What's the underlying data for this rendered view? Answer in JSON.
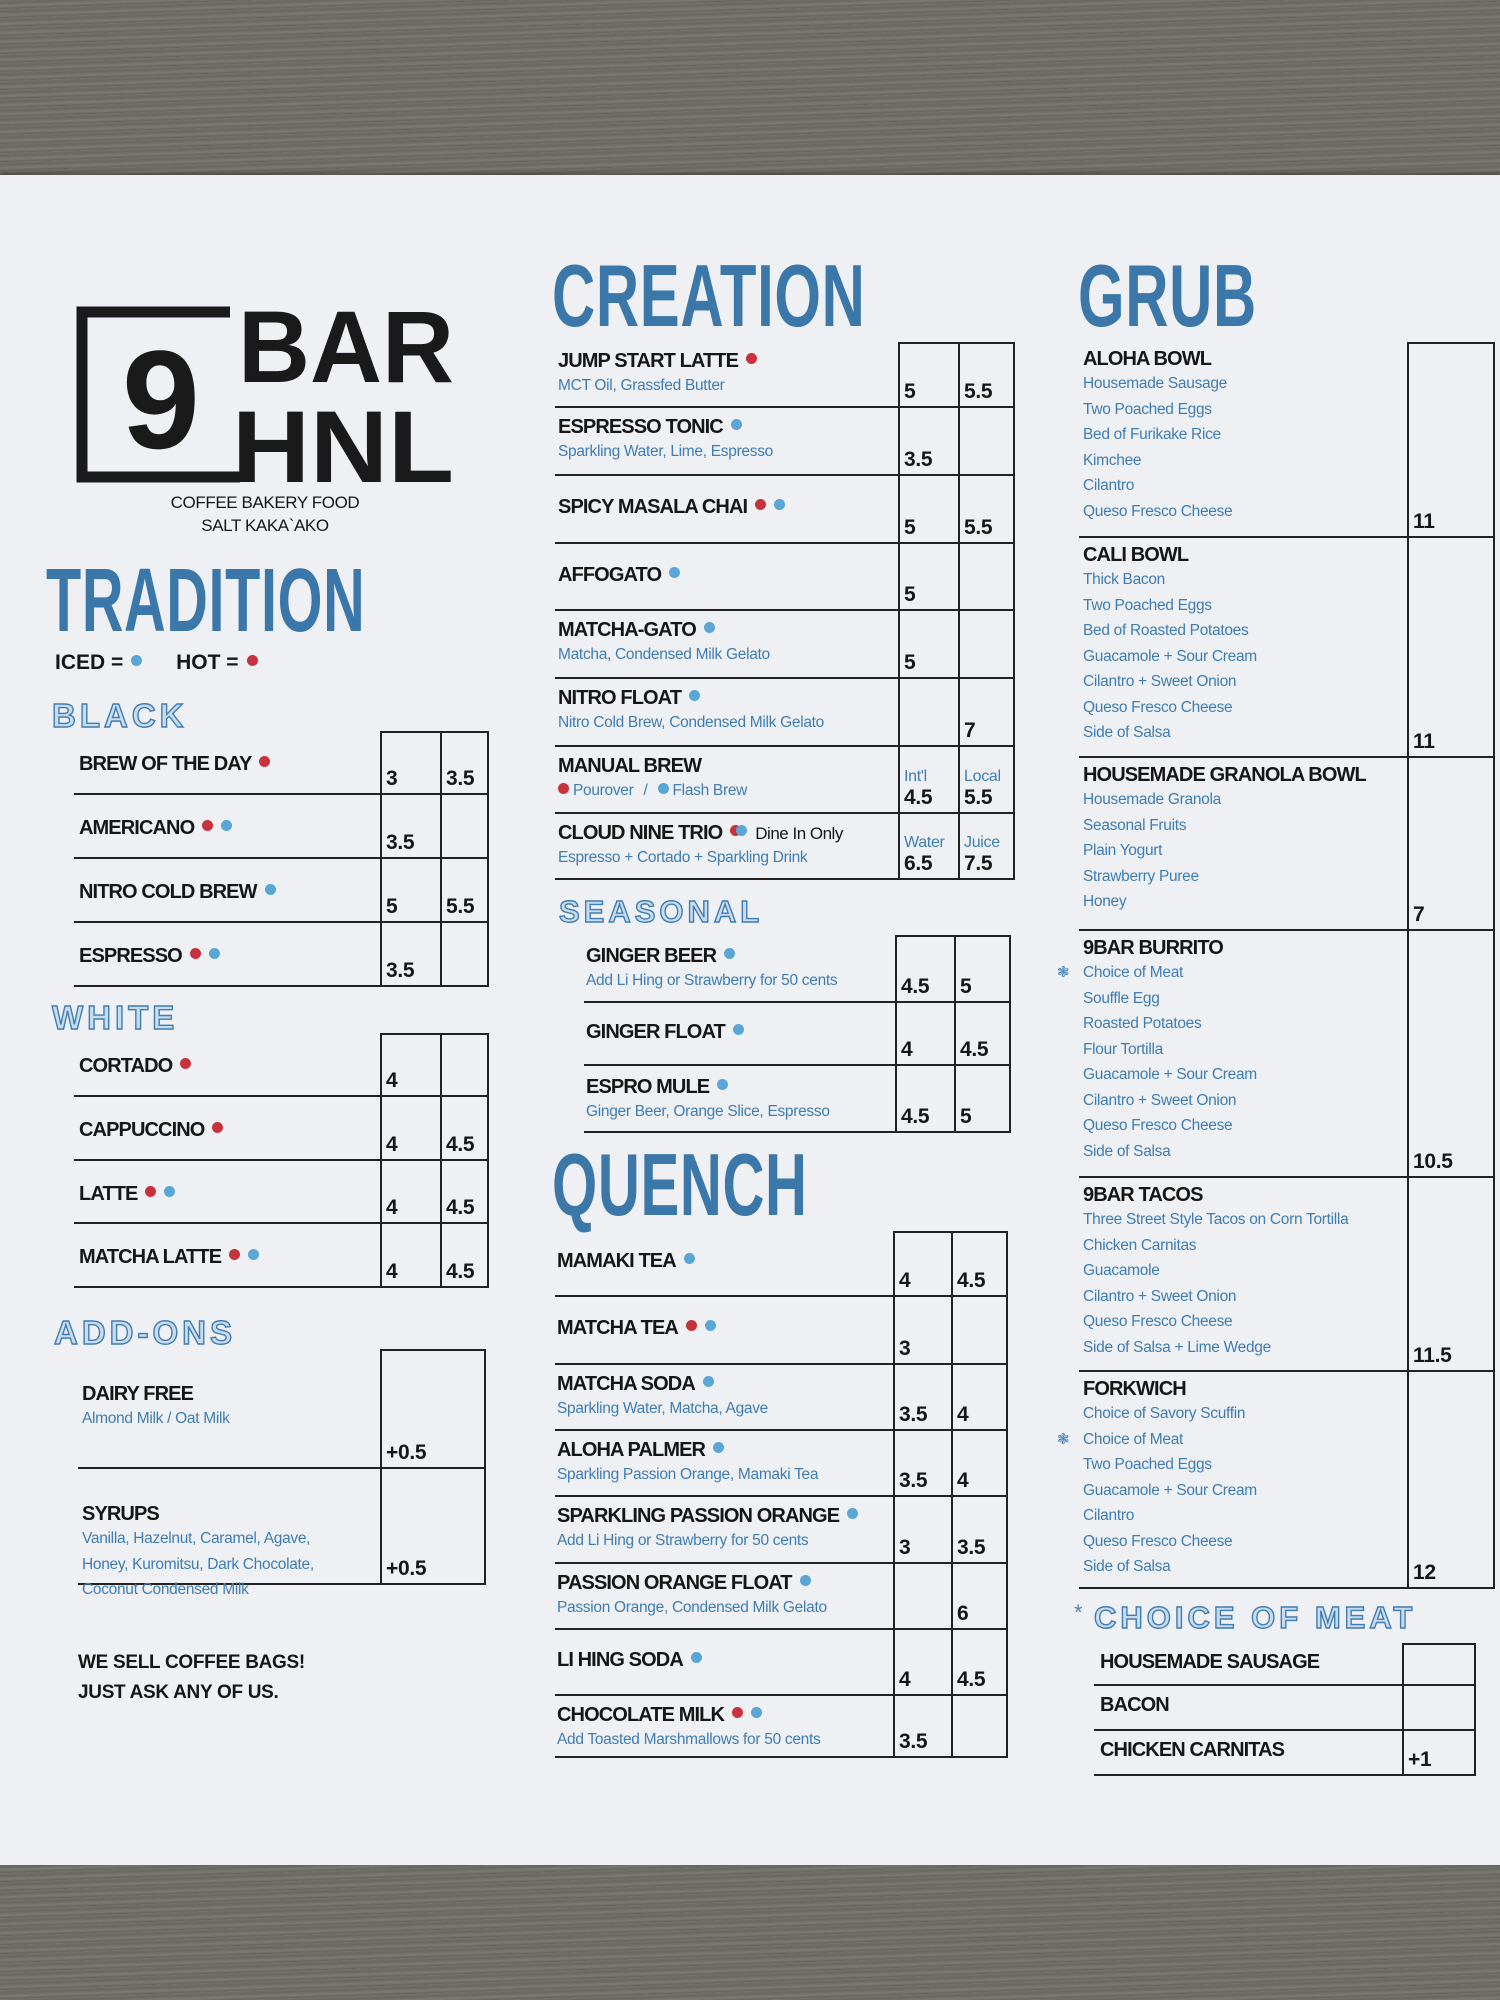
{
  "brand": {
    "logo_numeral": "9",
    "logo_line1": "BAR",
    "logo_line2": "HNL",
    "tagline1": "COFFEE BAKERY FOOD",
    "tagline2": "SALT KAKA`AKO"
  },
  "colors": {
    "heading_blue": "#3b78a9",
    "hot_dot": "#c8323c",
    "iced_dot": "#5aa6d6"
  },
  "tradition": {
    "title": "TRADITION",
    "legend": {
      "iced_label": "ICED =",
      "hot_label": "HOT ="
    },
    "black": {
      "title": "BLACK",
      "items": [
        {
          "name": "BREW OF THE DAY",
          "dots": [
            "hot"
          ],
          "prices": [
            "3",
            "3.5"
          ]
        },
        {
          "name": "AMERICANO",
          "dots": [
            "hot",
            "iced"
          ],
          "prices": [
            "3.5",
            ""
          ]
        },
        {
          "name": "NITRO COLD BREW",
          "dots": [
            "iced"
          ],
          "prices": [
            "5",
            "5.5"
          ]
        },
        {
          "name": "ESPRESSO",
          "dots": [
            "hot",
            "iced"
          ],
          "prices": [
            "3.5",
            ""
          ]
        }
      ]
    },
    "white": {
      "title": "WHITE",
      "items": [
        {
          "name": "CORTADO",
          "dots": [
            "hot"
          ],
          "prices": [
            "4",
            ""
          ]
        },
        {
          "name": "CAPPUCCINO",
          "dots": [
            "hot"
          ],
          "prices": [
            "4",
            "4.5"
          ]
        },
        {
          "name": "LATTE",
          "dots": [
            "hot",
            "iced"
          ],
          "prices": [
            "4",
            "4.5"
          ]
        },
        {
          "name": "MATCHA LATTE",
          "dots": [
            "hot",
            "iced"
          ],
          "prices": [
            "4",
            "4.5"
          ]
        }
      ]
    },
    "addons": {
      "title": "ADD-ONS",
      "items": [
        {
          "name": "DAIRY FREE",
          "lines": [
            "Almond Milk / Oat Milk"
          ],
          "prices": [
            "+0.5"
          ]
        },
        {
          "name": "SYRUPS",
          "lines": [
            "Vanilla, Hazelnut, Caramel, Agave,",
            "Honey, Kuromitsu, Dark Chocolate,",
            "Coconut Condensed Milk"
          ],
          "prices": [
            "+0.5"
          ]
        }
      ]
    },
    "footer_line1": "WE SELL COFFEE BAGS!",
    "footer_line2": "JUST ASK ANY OF US."
  },
  "creation": {
    "title": "CREATION",
    "items": [
      {
        "name": "JUMP START LATTE",
        "dots": [
          "hot"
        ],
        "lines": [
          "MCT Oil, Grassfed Butter"
        ],
        "prices": [
          "5",
          "5.5"
        ]
      },
      {
        "name": "ESPRESSO TONIC",
        "dots": [
          "iced"
        ],
        "lines": [
          "Sparkling Water, Lime, Espresso"
        ],
        "prices": [
          "3.5",
          ""
        ]
      },
      {
        "name": "SPICY MASALA CHAI",
        "dots": [
          "hot",
          "iced"
        ],
        "prices": [
          "5",
          "5.5"
        ]
      },
      {
        "name": "AFFOGATO",
        "dots": [
          "iced"
        ],
        "prices": [
          "5",
          ""
        ]
      },
      {
        "name": "MATCHA-GATO",
        "dots": [
          "iced"
        ],
        "lines": [
          "Matcha, Condensed Milk Gelato"
        ],
        "prices": [
          "5",
          ""
        ]
      },
      {
        "name": "NITRO FLOAT",
        "dots": [
          "iced"
        ],
        "lines": [
          "Nitro Cold Brew, Condensed Milk Gelato"
        ],
        "prices": [
          "",
          "7"
        ]
      },
      {
        "name": "MANUAL BREW",
        "options": [
          {
            "dot": "hot",
            "label": "Pourover"
          },
          {
            "dot": "iced",
            "label": "Flash Brew"
          }
        ],
        "option_separator": "/",
        "price_labels": [
          "Int'l",
          "Local"
        ],
        "prices": [
          "4.5",
          "5.5"
        ]
      },
      {
        "name": "CLOUD NINE TRIO",
        "dots": [
          "hot",
          "iced"
        ],
        "dots_overlap": true,
        "note": "Dine In Only",
        "lines": [
          "Espresso + Cortado + Sparkling Drink"
        ],
        "price_labels": [
          "Water",
          "Juice"
        ],
        "prices": [
          "6.5",
          "7.5"
        ]
      }
    ]
  },
  "seasonal": {
    "title": "SEASONAL",
    "items": [
      {
        "name": "GINGER BEER",
        "dots": [
          "iced"
        ],
        "lines": [
          "Add Li Hing or Strawberry for 50 cents"
        ],
        "prices": [
          "4.5",
          "5"
        ]
      },
      {
        "name": "GINGER FLOAT",
        "dots": [
          "iced"
        ],
        "prices": [
          "4",
          "4.5"
        ]
      },
      {
        "name": "ESPRO MULE",
        "dots": [
          "iced"
        ],
        "lines": [
          "Ginger Beer, Orange Slice, Espresso"
        ],
        "prices": [
          "4.5",
          "5"
        ]
      }
    ]
  },
  "quench": {
    "title": "QUENCH",
    "items": [
      {
        "name": "MAMAKI TEA",
        "dots": [
          "iced"
        ],
        "prices": [
          "4",
          "4.5"
        ]
      },
      {
        "name": "MATCHA TEA",
        "dots": [
          "hot",
          "iced"
        ],
        "prices": [
          "3",
          ""
        ]
      },
      {
        "name": "MATCHA SODA",
        "dots": [
          "iced"
        ],
        "lines": [
          "Sparkling Water, Matcha, Agave"
        ],
        "prices": [
          "3.5",
          "4"
        ]
      },
      {
        "name": "ALOHA PALMER",
        "dots": [
          "iced"
        ],
        "lines": [
          "Sparkling Passion Orange, Mamaki Tea"
        ],
        "prices": [
          "3.5",
          "4"
        ]
      },
      {
        "name": "SPARKLING PASSION ORANGE",
        "dots": [
          "iced"
        ],
        "lines": [
          "Add Li Hing or Strawberry for 50 cents"
        ],
        "prices": [
          "3",
          "3.5"
        ]
      },
      {
        "name": "PASSION ORANGE FLOAT",
        "dots": [
          "iced"
        ],
        "lines": [
          "Passion Orange, Condensed Milk Gelato"
        ],
        "prices": [
          "",
          "6"
        ]
      },
      {
        "name": "LI HING SODA",
        "dots": [
          "iced"
        ],
        "prices": [
          "4",
          "4.5"
        ]
      },
      {
        "name": "CHOCOLATE MILK",
        "dots": [
          "hot",
          "iced"
        ],
        "lines": [
          "Add Toasted Marshmallows for 50 cents"
        ],
        "prices": [
          "3.5",
          ""
        ]
      }
    ]
  },
  "grub": {
    "title": "GRUB",
    "items": [
      {
        "name": "ALOHA BOWL",
        "lines": [
          "Housemade Sausage",
          "Two Poached Eggs",
          "Bed of Furikake Rice",
          "Kimchee",
          "Cilantro",
          "Queso Fresco Cheese"
        ],
        "prices": [
          "11"
        ]
      },
      {
        "name": "CALI BOWL",
        "lines": [
          "Thick Bacon",
          "Two Poached Eggs",
          "Bed of Roasted Potatoes",
          "Guacamole + Sour Cream",
          "Cilantro + Sweet Onion",
          "Queso Fresco Cheese",
          "Side of Salsa"
        ],
        "prices": [
          "11"
        ]
      },
      {
        "name": "HOUSEMADE GRANOLA BOWL",
        "lines": [
          "Housemade Granola",
          "Seasonal Fruits",
          "Plain Yogurt",
          "Strawberry Puree",
          "Honey"
        ],
        "prices": [
          "7"
        ]
      },
      {
        "name": "9BAR BURRITO",
        "lines": [
          "Choice of Meat",
          "Souffle Egg",
          "Roasted Potatoes",
          "Flour Tortilla",
          "Guacamole + Sour Cream",
          "Cilantro + Sweet Onion",
          "Queso Fresco Cheese",
          "Side of Salsa"
        ],
        "marked_line": 0,
        "prices": [
          "10.5"
        ]
      },
      {
        "name": "9BAR TACOS",
        "lines": [
          "Three Street Style Tacos on Corn Tortilla",
          "Chicken Carnitas",
          "Guacamole",
          "Cilantro + Sweet Onion",
          "Queso Fresco Cheese",
          "Side of Salsa + Lime Wedge"
        ],
        "prices": [
          "11.5"
        ]
      },
      {
        "name": "FORKWICH",
        "lines": [
          "Choice of Savory Scuffin",
          "Choice of Meat",
          "Two Poached Eggs",
          "Guacamole + Sour Cream",
          "Cilantro",
          "Queso Fresco Cheese",
          "Side of Salsa"
        ],
        "marked_line": 1,
        "prices": [
          "12"
        ]
      }
    ]
  },
  "choice_of_meat": {
    "marker": "*",
    "title": "CHOICE OF MEAT",
    "items": [
      {
        "name": "HOUSEMADE SAUSAGE",
        "prices": [
          ""
        ]
      },
      {
        "name": "BACON",
        "prices": [
          ""
        ]
      },
      {
        "name": "CHICKEN CARNITAS",
        "prices": [
          "+1"
        ]
      }
    ]
  }
}
